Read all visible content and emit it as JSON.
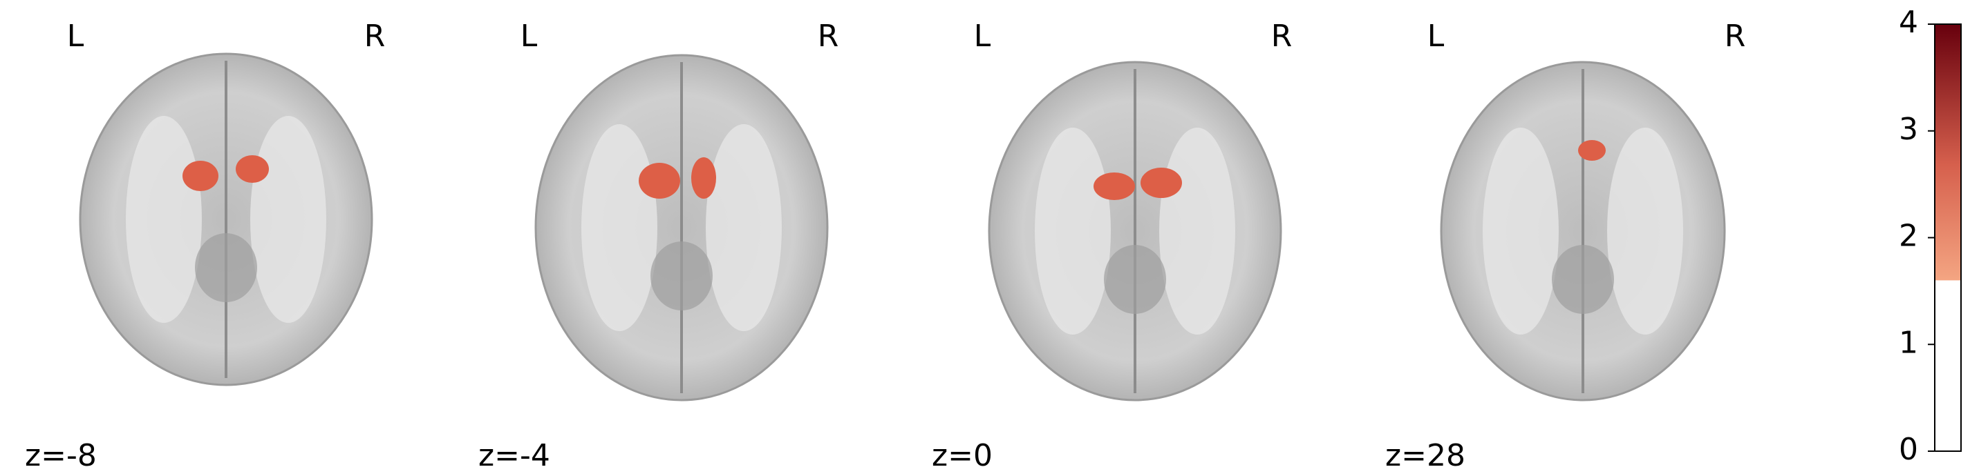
{
  "panels": [
    {
      "left": "L",
      "right": "R",
      "label": "z=-8"
    },
    {
      "left": "L",
      "right": "R",
      "label": "z=-4"
    },
    {
      "left": "L",
      "right": "R",
      "label": "z=0"
    },
    {
      "left": "L",
      "right": "R",
      "label": "z=28"
    }
  ],
  "colorbar": {
    "ylim": [
      0,
      4
    ],
    "yticks": [
      0,
      1,
      2,
      3,
      4
    ],
    "threshold": 1.6,
    "colors": [
      "#f4a582",
      "#67000d"
    ]
  }
}
